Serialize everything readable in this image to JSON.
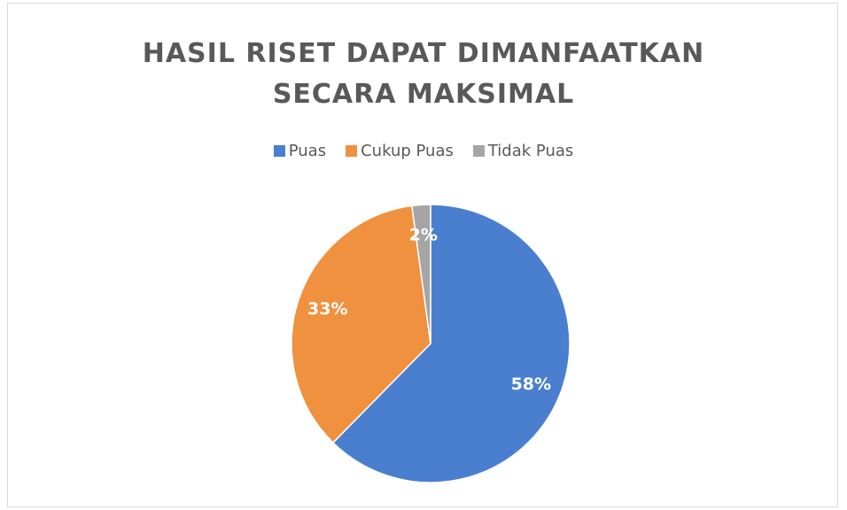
{
  "chart_data": {
    "type": "pie",
    "title": "HASIL RISET DAPAT DIMANFAATKAN SECARA MAKSIMAL",
    "categories": [
      "Puas",
      "Cukup Puas",
      "Tidak Puas"
    ],
    "values": [
      58,
      33,
      2
    ],
    "value_labels": [
      "58%",
      "33%",
      "2%"
    ],
    "colors": [
      "#4a7fcf",
      "#f0913f",
      "#a5a5a5"
    ],
    "legend": "top"
  }
}
